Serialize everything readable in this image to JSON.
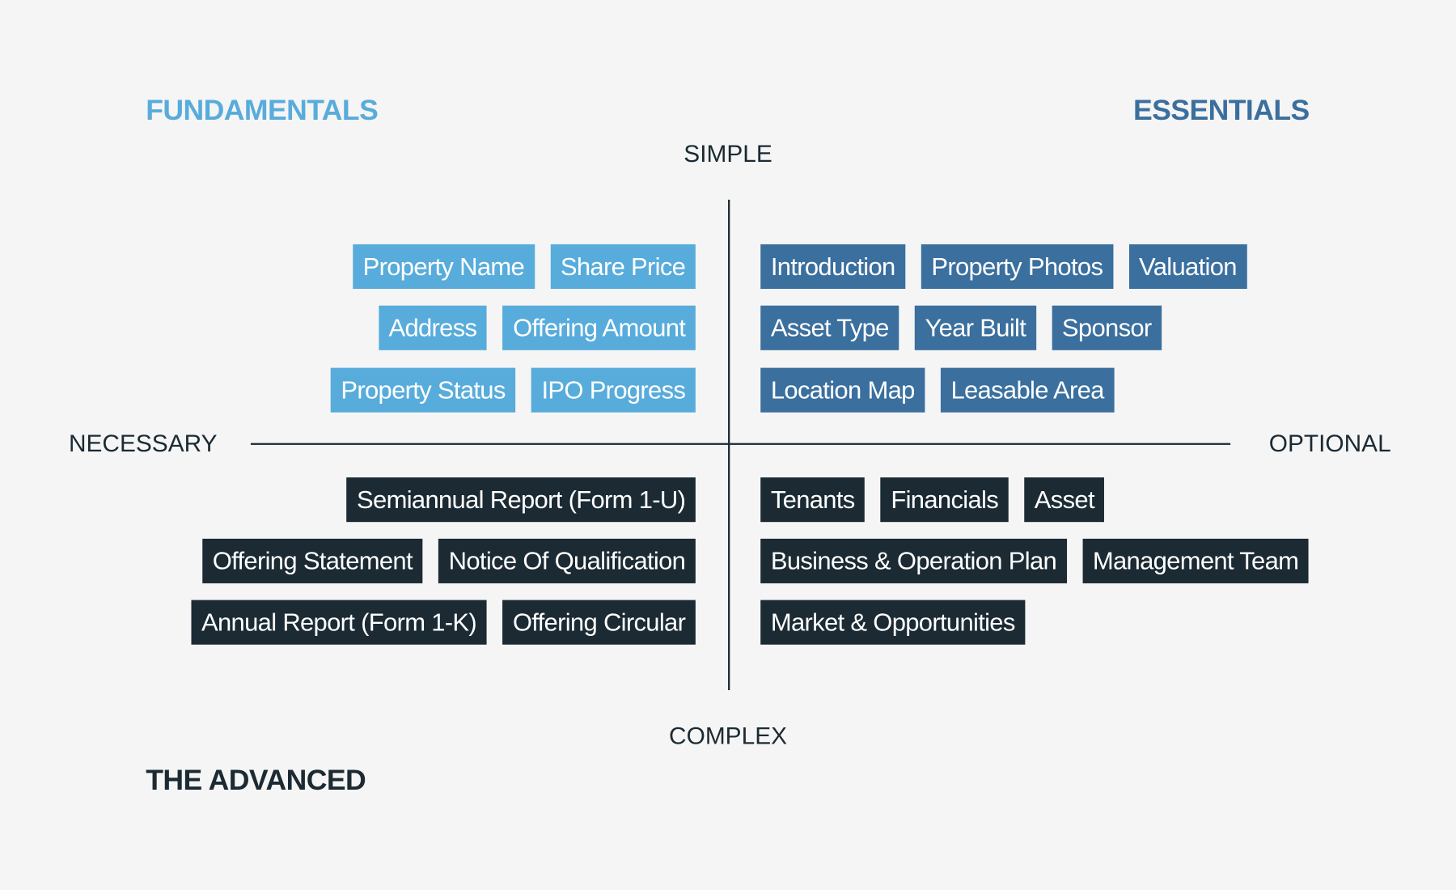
{
  "colors": {
    "fundamentals": "#58acdb",
    "essentials": "#3a6f9e",
    "advanced": "#1b2a33",
    "background": "#f5f5f5"
  },
  "headings": {
    "fundamentals": "FUNDAMENTALS",
    "essentials": "ESSENTIALS",
    "advanced": "THE ADVANCED"
  },
  "axes": {
    "top": "SIMPLE",
    "bottom": "COMPLEX",
    "left": "NECESSARY",
    "right": "OPTIONAL"
  },
  "quadrants": {
    "fundamentals": [
      [
        "Property Name",
        "Share Price"
      ],
      [
        "Address",
        "Offering Amount"
      ],
      [
        "Property Status",
        "IPO Progress"
      ]
    ],
    "essentials": [
      [
        "Introduction",
        "Property Photos",
        "Valuation"
      ],
      [
        "Asset Type",
        "Year Built",
        "Sponsor"
      ],
      [
        "Location Map",
        "Leasable Area"
      ]
    ],
    "advanced": [
      [
        "Semiannual Report (Form 1-U)"
      ],
      [
        "Offering Statement",
        "Notice Of Qualification"
      ],
      [
        "Annual Report (Form 1-K)",
        "Offering Circular"
      ]
    ],
    "optional_complex": [
      [
        "Tenants",
        "Financials",
        "Asset"
      ],
      [
        "Business & Operation Plan",
        "Management Team"
      ],
      [
        "Market & Opportunities"
      ]
    ]
  }
}
